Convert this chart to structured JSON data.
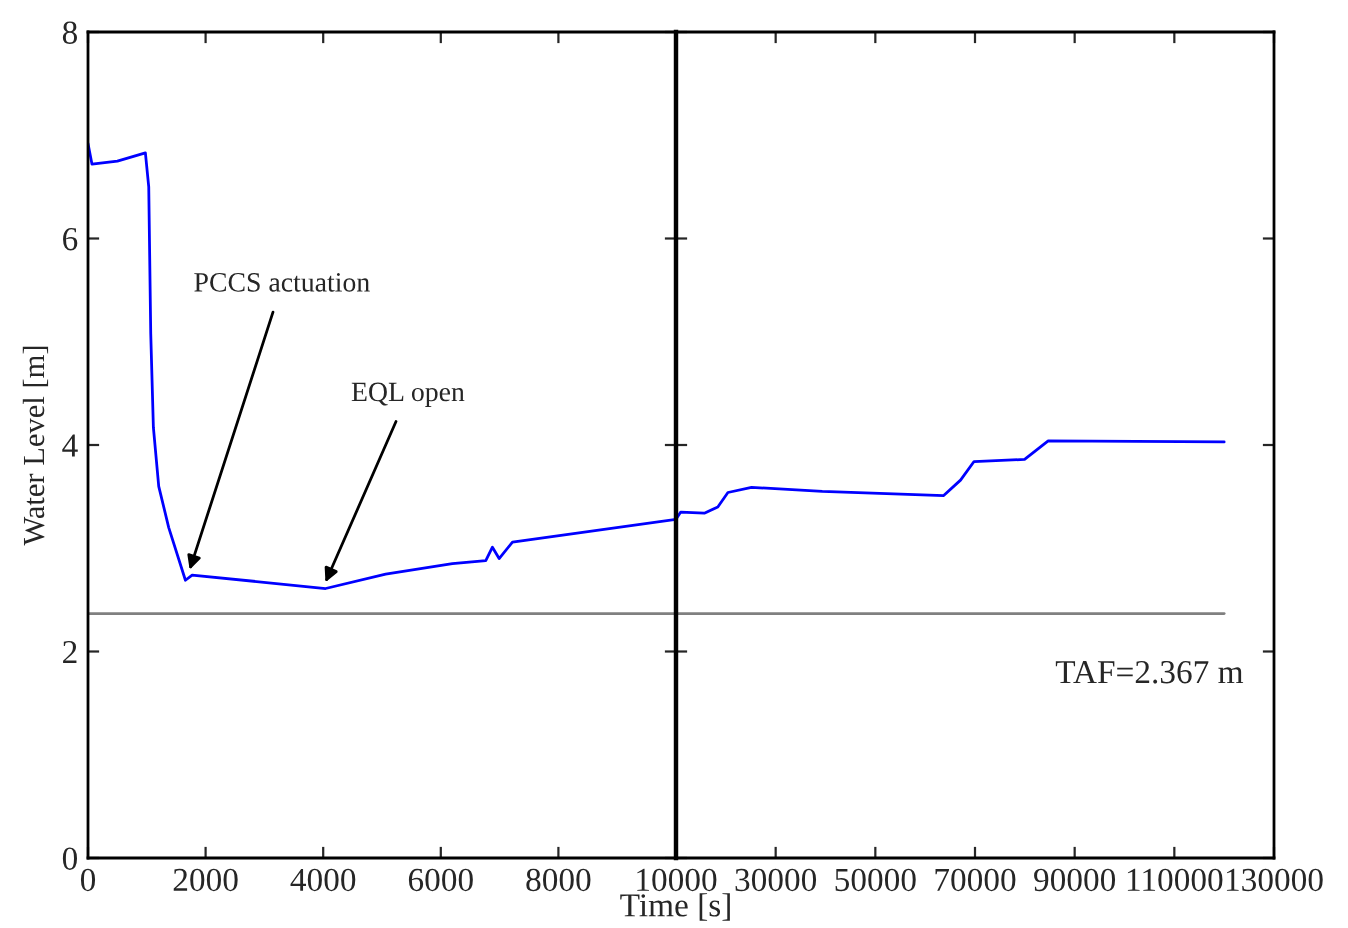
{
  "chart_data": [
    {
      "type": "line",
      "ylabel": "Water Level [m]",
      "xlabel": "Time [s]",
      "xlim": [
        0,
        10000
      ],
      "xticks": [
        0,
        2000,
        4000,
        6000,
        8000
      ],
      "ylim": [
        0,
        8
      ],
      "yticks": [
        0,
        2,
        4,
        6,
        8
      ],
      "grid": false,
      "series": [
        {
          "color": "#0000ff",
          "x": [
            0,
            68,
            500,
            976,
            1033,
            1067,
            1112,
            1203,
            1373,
            1657,
            1771,
            4041,
            5062,
            6197,
            6765,
            6878,
            6992,
            7219,
            10000
          ],
          "values": [
            6.92,
            6.72,
            6.75,
            6.83,
            6.5,
            5.08,
            4.17,
            3.6,
            3.2,
            2.69,
            2.74,
            2.61,
            2.75,
            2.85,
            2.88,
            3.01,
            2.9,
            3.06,
            3.28
          ]
        },
        {
          "color": "#808080",
          "x": [
            0,
            10000
          ],
          "values": [
            2.367,
            2.367
          ]
        }
      ],
      "annotations": [
        {
          "text": "PCCS actuation",
          "x": 1700,
          "y": 2.74
        },
        {
          "text": "EQL open",
          "x": 4000,
          "y": 2.62
        }
      ]
    },
    {
      "type": "line",
      "xlim": [
        10000,
        130000
      ],
      "xticks": [
        10000,
        30000,
        50000,
        70000,
        90000,
        110000,
        130000
      ],
      "ylim": [
        0,
        8
      ],
      "yticks": [
        0,
        2,
        4,
        6,
        8
      ],
      "tick_labels": "x",
      "grid": false,
      "series": [
        {
          "color": "#0000ff",
          "x": [
            10000,
            10947,
            15683,
            18389,
            20418,
            25154,
            39360,
            63714,
            67097,
            69803,
            79950,
            84686,
            120000
          ],
          "values": [
            3.28,
            3.35,
            3.34,
            3.4,
            3.54,
            3.59,
            3.55,
            3.51,
            3.66,
            3.84,
            3.86,
            4.04,
            4.03
          ]
        },
        {
          "color": "#808080",
          "x": [
            10000,
            120000
          ],
          "values": [
            2.367,
            2.367
          ]
        }
      ],
      "annotations": [
        {
          "text": "TAF=2.367 m",
          "x": 105000,
          "y": 2.367
        }
      ]
    }
  ]
}
